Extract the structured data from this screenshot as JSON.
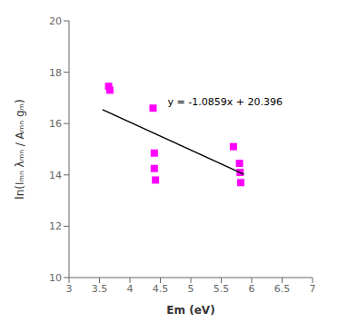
{
  "chart_data": {
    "type": "scatter",
    "x_label": "Em (eV)",
    "y_label": "ln(Iₘₙ λₘₙ / Aₘₙ gₘ)",
    "xlim": [
      3.0,
      7.0
    ],
    "ylim": [
      10,
      20
    ],
    "xticks": [
      3,
      3.5,
      4,
      4.5,
      5,
      5.5,
      6,
      6.5,
      7
    ],
    "yticks": [
      10,
      12,
      14,
      16,
      18,
      20
    ],
    "grid": false,
    "series": [
      {
        "type": "scatter",
        "color": "#FF00FF",
        "marker": "square",
        "x": [
          3.65,
          3.67,
          4.38,
          4.4,
          4.4,
          4.42,
          5.7,
          5.8,
          5.81,
          5.82
        ],
        "values": [
          17.45,
          17.3,
          16.6,
          14.85,
          14.25,
          13.8,
          15.1,
          14.45,
          14.1,
          13.7
        ]
      },
      {
        "type": "line",
        "color": "black",
        "x": [
          3.55,
          5.87
        ],
        "values": [
          16.541055,
          14.021767
        ]
      }
    ],
    "annotations": [
      {
        "text": "y = -1.0859x + 20.396",
        "x": 4.62,
        "y": 16.85
      }
    ]
  }
}
